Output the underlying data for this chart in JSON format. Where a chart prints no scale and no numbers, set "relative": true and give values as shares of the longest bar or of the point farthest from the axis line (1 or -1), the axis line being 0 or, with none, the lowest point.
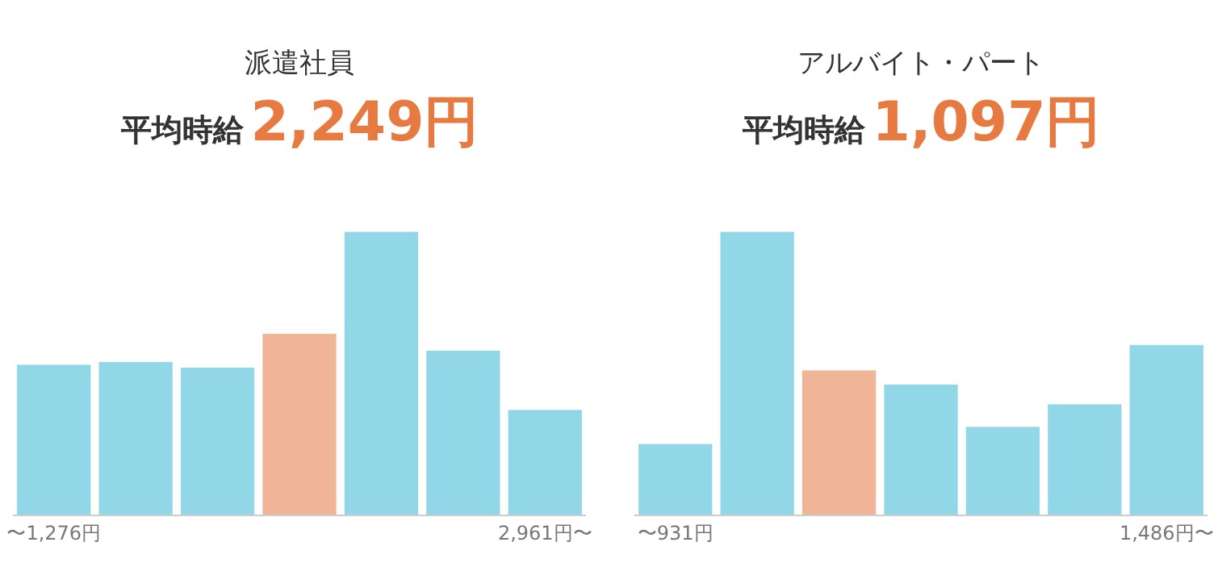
{
  "chart_data": [
    {
      "type": "bar",
      "title": "派遣社員",
      "subtitle": "平均時給2,249円",
      "categories": [
        "〜1,276円",
        null,
        null,
        null,
        null,
        null,
        "2,961円〜"
      ],
      "values": [
        0.53,
        0.54,
        0.52,
        0.64,
        1,
        0.58,
        0.37
      ],
      "colors": [
        "#92d7e8",
        "#92d7e8",
        "#92d7e8",
        "#f0b597",
        "#92d7e8",
        "#92d7e8",
        "#92d7e8"
      ],
      "relative": true
    },
    {
      "type": "bar",
      "title": "アルバイト・パート",
      "subtitle": "平均時給1,097円",
      "categories": [
        "〜931円",
        null,
        null,
        null,
        null,
        null,
        "1,486円〜"
      ],
      "values": [
        0.25,
        1,
        0.51,
        0.46,
        0.31,
        0.39,
        0.6
      ],
      "colors": [
        "#92d7e8",
        "#92d7e8",
        "#f0b597",
        "#92d7e8",
        "#92d7e8",
        "#92d7e8",
        "#92d7e8"
      ],
      "relative": true
    }
  ]
}
